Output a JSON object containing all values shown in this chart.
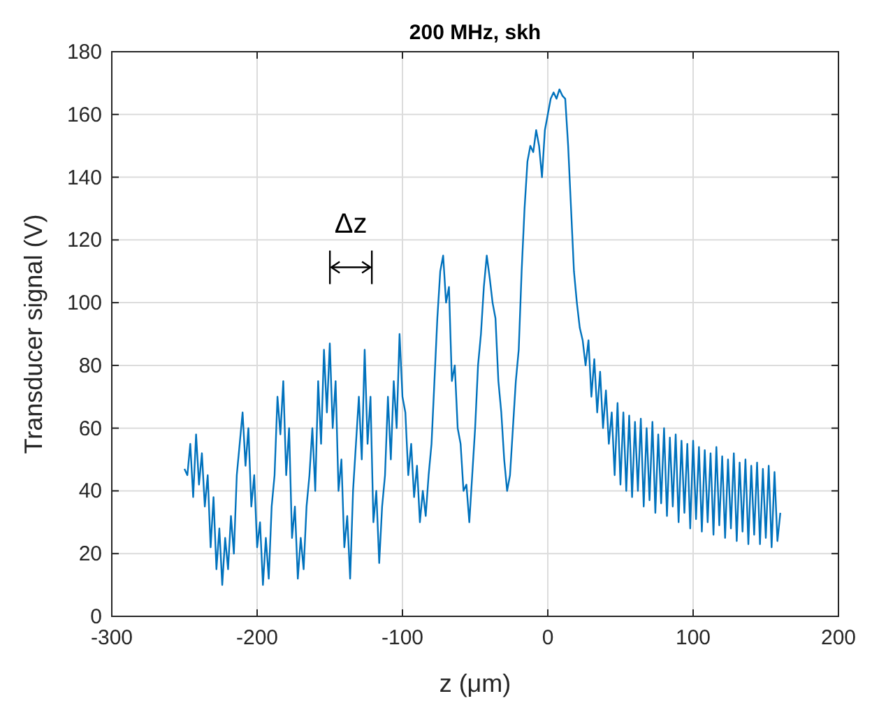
{
  "chart_data": {
    "type": "line",
    "title": "200 MHz, skh",
    "xlabel": "z (μm)",
    "ylabel": "Transducer signal (V)",
    "xlim": [
      -300,
      200
    ],
    "xticks": [
      -300,
      -200,
      -100,
      0,
      100,
      200
    ],
    "ylim": [
      0,
      180
    ],
    "yticks": [
      0,
      20,
      40,
      60,
      80,
      100,
      120,
      140,
      160,
      180
    ],
    "grid": true,
    "line_style": "solid",
    "annotations": [
      "Δz"
    ],
    "series": [
      {
        "color": "#0072bd",
        "x": [
          -250,
          -248,
          -246,
          -244,
          -242,
          -240,
          -238,
          -236,
          -234,
          -232,
          -230,
          -228,
          -226,
          -224,
          -222,
          -220,
          -218,
          -216,
          -214,
          -212,
          -210,
          -208,
          -206,
          -204,
          -202,
          -200,
          -198,
          -196,
          -194,
          -192,
          -190,
          -188,
          -186,
          -184,
          -182,
          -180,
          -178,
          -176,
          -174,
          -172,
          -170,
          -168,
          -166,
          -164,
          -162,
          -160,
          -158,
          -156,
          -154,
          -152,
          -150,
          -148,
          -146,
          -144,
          -142,
          -140,
          -138,
          -136,
          -134,
          -132,
          -130,
          -128,
          -126,
          -124,
          -122,
          -120,
          -118,
          -116,
          -114,
          -112,
          -110,
          -108,
          -106,
          -104,
          -102,
          -100,
          -98,
          -96,
          -94,
          -92,
          -90,
          -88,
          -86,
          -84,
          -82,
          -80,
          -78,
          -76,
          -74,
          -72,
          -70,
          -68,
          -66,
          -64,
          -62,
          -60,
          -58,
          -56,
          -54,
          -52,
          -50,
          -48,
          -46,
          -44,
          -42,
          -40,
          -38,
          -36,
          -34,
          -32,
          -30,
          -28,
          -26,
          -24,
          -22,
          -20,
          -18,
          -16,
          -14,
          -12,
          -10,
          -8,
          -6,
          -4,
          -2,
          0,
          2,
          4,
          6,
          8,
          10,
          12,
          14,
          16,
          18,
          20,
          22,
          24,
          26,
          28,
          30,
          32,
          34,
          36,
          38,
          40,
          42,
          44,
          46,
          48,
          50,
          52,
          54,
          56,
          58,
          60,
          62,
          64,
          66,
          68,
          70,
          72,
          74,
          76,
          78,
          80,
          82,
          84,
          86,
          88,
          90,
          92,
          94,
          96,
          98,
          100,
          102,
          104,
          106,
          108,
          110,
          112,
          114,
          116,
          118,
          120,
          122,
          124,
          126,
          128,
          130,
          132,
          134,
          136,
          138,
          140,
          142,
          144,
          146,
          148,
          150,
          152,
          154,
          156,
          158,
          160
        ],
        "values": [
          47,
          45,
          55,
          38,
          58,
          42,
          52,
          35,
          45,
          22,
          38,
          15,
          28,
          10,
          25,
          15,
          32,
          20,
          45,
          55,
          65,
          48,
          60,
          35,
          45,
          22,
          30,
          10,
          25,
          12,
          35,
          45,
          70,
          58,
          75,
          45,
          60,
          25,
          35,
          12,
          25,
          15,
          35,
          45,
          60,
          40,
          75,
          55,
          85,
          65,
          87,
          60,
          75,
          40,
          50,
          22,
          32,
          12,
          40,
          55,
          70,
          50,
          85,
          55,
          70,
          30,
          40,
          17,
          35,
          45,
          70,
          50,
          75,
          60,
          90,
          70,
          65,
          45,
          55,
          38,
          48,
          30,
          40,
          32,
          45,
          55,
          75,
          95,
          110,
          115,
          100,
          105,
          75,
          80,
          60,
          55,
          40,
          42,
          30,
          45,
          60,
          80,
          90,
          105,
          115,
          108,
          100,
          95,
          75,
          65,
          50,
          40,
          45,
          60,
          75,
          85,
          110,
          130,
          145,
          150,
          148,
          155,
          150,
          140,
          155,
          160,
          165,
          167,
          165,
          168,
          166,
          165,
          150,
          130,
          110,
          100,
          92,
          88,
          80,
          88,
          70,
          82,
          65,
          78,
          60,
          72,
          55,
          65,
          45,
          68,
          42,
          65,
          40,
          64,
          38,
          62,
          40,
          63,
          35,
          60,
          37,
          62,
          33,
          58,
          36,
          60,
          32,
          57,
          35,
          58,
          30,
          56,
          33,
          55,
          28,
          56,
          31,
          54,
          27,
          53,
          30,
          52,
          26,
          54,
          29,
          51,
          25,
          50,
          28,
          52,
          24,
          49,
          27,
          50,
          23,
          48,
          26,
          49,
          23,
          47,
          25,
          48,
          22,
          46,
          24,
          33
        ]
      }
    ]
  }
}
